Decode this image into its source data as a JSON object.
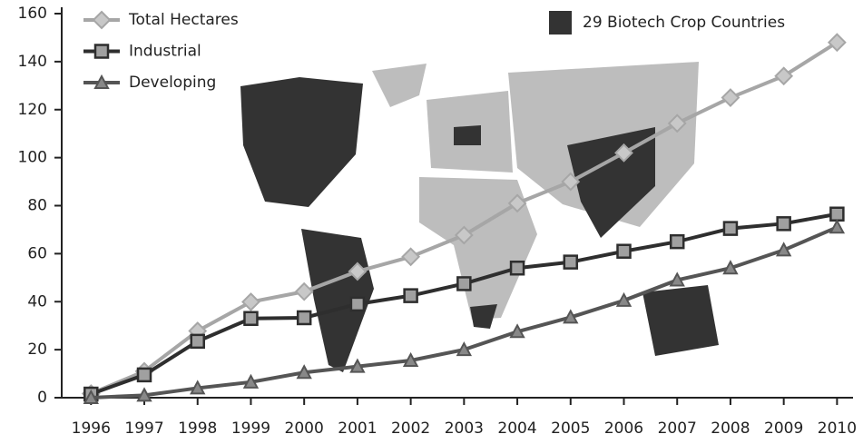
{
  "chart_data": {
    "type": "line",
    "x": [
      1996,
      1997,
      1998,
      1999,
      2000,
      2001,
      2002,
      2003,
      2004,
      2005,
      2006,
      2007,
      2008,
      2009,
      2010
    ],
    "series": [
      {
        "name": "Total Hectares",
        "color": "#a6a6a6",
        "marker": "diamond",
        "values": [
          1.7,
          11,
          27.8,
          39.9,
          44.2,
          52.6,
          58.7,
          67.7,
          81,
          90,
          102,
          114.3,
          125,
          134,
          148
        ]
      },
      {
        "name": "Industrial",
        "color": "#2e2e2e",
        "marker": "square",
        "values": [
          1.5,
          9.5,
          23.5,
          33,
          33.3,
          39,
          42.5,
          47.5,
          54,
          56.5,
          61,
          65,
          70.5,
          72.5,
          76.5
        ]
      },
      {
        "name": "Developing",
        "color": "#555555",
        "marker": "triangle",
        "values": [
          0,
          1,
          4,
          6.5,
          10.5,
          13,
          15.5,
          20,
          27.5,
          33.5,
          40.5,
          49,
          54,
          61.5,
          71
        ]
      }
    ],
    "map_legend": "29 Biotech Crop Countries",
    "xlim": [
      1995.45,
      2010.3
    ],
    "xticks": [
      1996,
      1997,
      1998,
      1999,
      2000,
      2001,
      2002,
      2003,
      2004,
      2005,
      2006,
      2007,
      2008,
      2009,
      2010
    ],
    "ylim": [
      0,
      160
    ],
    "yticks": [
      0,
      20,
      40,
      60,
      80,
      100,
      120,
      140,
      160
    ],
    "grid": false
  }
}
